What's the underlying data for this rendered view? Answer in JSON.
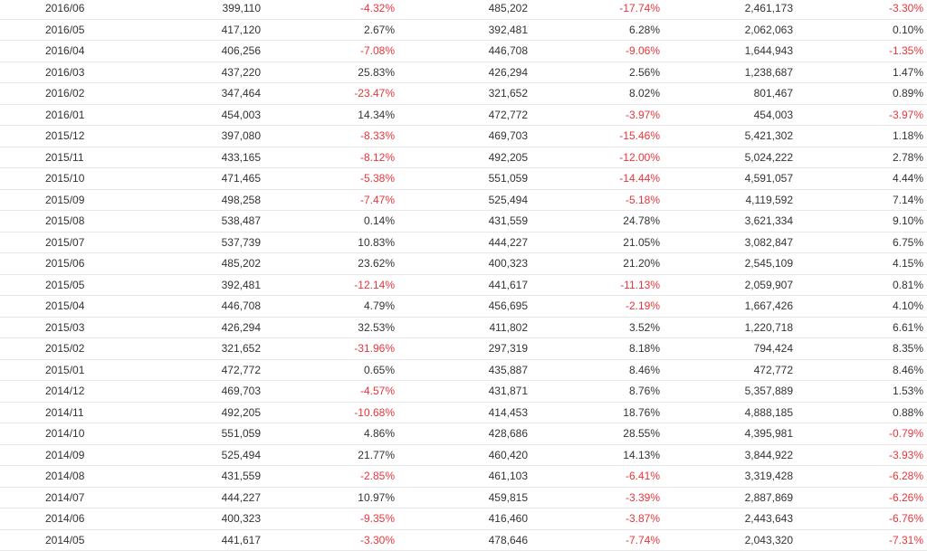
{
  "table": {
    "rows": [
      {
        "month": "2016/06",
        "v1": "399,110",
        "p1": "-4.32%",
        "v2": "485,202",
        "p2": "-17.74%",
        "v3": "2,461,173",
        "p3": "-3.30%"
      },
      {
        "month": "2016/05",
        "v1": "417,120",
        "p1": "2.67%",
        "v2": "392,481",
        "p2": "6.28%",
        "v3": "2,062,063",
        "p3": "0.10%"
      },
      {
        "month": "2016/04",
        "v1": "406,256",
        "p1": "-7.08%",
        "v2": "446,708",
        "p2": "-9.06%",
        "v3": "1,644,943",
        "p3": "-1.35%"
      },
      {
        "month": "2016/03",
        "v1": "437,220",
        "p1": "25.83%",
        "v2": "426,294",
        "p2": "2.56%",
        "v3": "1,238,687",
        "p3": "1.47%"
      },
      {
        "month": "2016/02",
        "v1": "347,464",
        "p1": "-23.47%",
        "v2": "321,652",
        "p2": "8.02%",
        "v3": "801,467",
        "p3": "0.89%"
      },
      {
        "month": "2016/01",
        "v1": "454,003",
        "p1": "14.34%",
        "v2": "472,772",
        "p2": "-3.97%",
        "v3": "454,003",
        "p3": "-3.97%"
      },
      {
        "month": "2015/12",
        "v1": "397,080",
        "p1": "-8.33%",
        "v2": "469,703",
        "p2": "-15.46%",
        "v3": "5,421,302",
        "p3": "1.18%"
      },
      {
        "month": "2015/11",
        "v1": "433,165",
        "p1": "-8.12%",
        "v2": "492,205",
        "p2": "-12.00%",
        "v3": "5,024,222",
        "p3": "2.78%"
      },
      {
        "month": "2015/10",
        "v1": "471,465",
        "p1": "-5.38%",
        "v2": "551,059",
        "p2": "-14.44%",
        "v3": "4,591,057",
        "p3": "4.44%"
      },
      {
        "month": "2015/09",
        "v1": "498,258",
        "p1": "-7.47%",
        "v2": "525,494",
        "p2": "-5.18%",
        "v3": "4,119,592",
        "p3": "7.14%"
      },
      {
        "month": "2015/08",
        "v1": "538,487",
        "p1": "0.14%",
        "v2": "431,559",
        "p2": "24.78%",
        "v3": "3,621,334",
        "p3": "9.10%"
      },
      {
        "month": "2015/07",
        "v1": "537,739",
        "p1": "10.83%",
        "v2": "444,227",
        "p2": "21.05%",
        "v3": "3,082,847",
        "p3": "6.75%"
      },
      {
        "month": "2015/06",
        "v1": "485,202",
        "p1": "23.62%",
        "v2": "400,323",
        "p2": "21.20%",
        "v3": "2,545,109",
        "p3": "4.15%"
      },
      {
        "month": "2015/05",
        "v1": "392,481",
        "p1": "-12.14%",
        "v2": "441,617",
        "p2": "-11.13%",
        "v3": "2,059,907",
        "p3": "0.81%"
      },
      {
        "month": "2015/04",
        "v1": "446,708",
        "p1": "4.79%",
        "v2": "456,695",
        "p2": "-2.19%",
        "v3": "1,667,426",
        "p3": "4.10%"
      },
      {
        "month": "2015/03",
        "v1": "426,294",
        "p1": "32.53%",
        "v2": "411,802",
        "p2": "3.52%",
        "v3": "1,220,718",
        "p3": "6.61%"
      },
      {
        "month": "2015/02",
        "v1": "321,652",
        "p1": "-31.96%",
        "v2": "297,319",
        "p2": "8.18%",
        "v3": "794,424",
        "p3": "8.35%"
      },
      {
        "month": "2015/01",
        "v1": "472,772",
        "p1": "0.65%",
        "v2": "435,887",
        "p2": "8.46%",
        "v3": "472,772",
        "p3": "8.46%"
      },
      {
        "month": "2014/12",
        "v1": "469,703",
        "p1": "-4.57%",
        "v2": "431,871",
        "p2": "8.76%",
        "v3": "5,357,889",
        "p3": "1.53%"
      },
      {
        "month": "2014/11",
        "v1": "492,205",
        "p1": "-10.68%",
        "v2": "414,453",
        "p2": "18.76%",
        "v3": "4,888,185",
        "p3": "0.88%"
      },
      {
        "month": "2014/10",
        "v1": "551,059",
        "p1": "4.86%",
        "v2": "428,686",
        "p2": "28.55%",
        "v3": "4,395,981",
        "p3": "-0.79%"
      },
      {
        "month": "2014/09",
        "v1": "525,494",
        "p1": "21.77%",
        "v2": "460,420",
        "p2": "14.13%",
        "v3": "3,844,922",
        "p3": "-3.93%"
      },
      {
        "month": "2014/08",
        "v1": "431,559",
        "p1": "-2.85%",
        "v2": "461,103",
        "p2": "-6.41%",
        "v3": "3,319,428",
        "p3": "-6.28%"
      },
      {
        "month": "2014/07",
        "v1": "444,227",
        "p1": "10.97%",
        "v2": "459,815",
        "p2": "-3.39%",
        "v3": "2,887,869",
        "p3": "-6.26%"
      },
      {
        "month": "2014/06",
        "v1": "400,323",
        "p1": "-9.35%",
        "v2": "416,460",
        "p2": "-3.87%",
        "v3": "2,443,643",
        "p3": "-6.76%"
      },
      {
        "month": "2014/05",
        "v1": "441,617",
        "p1": "-3.30%",
        "v2": "478,646",
        "p2": "-7.74%",
        "v3": "2,043,320",
        "p3": "-7.31%"
      }
    ]
  },
  "colors": {
    "text": "#333333",
    "negative": "#e8353b",
    "row_border": "#e8e8e8"
  }
}
